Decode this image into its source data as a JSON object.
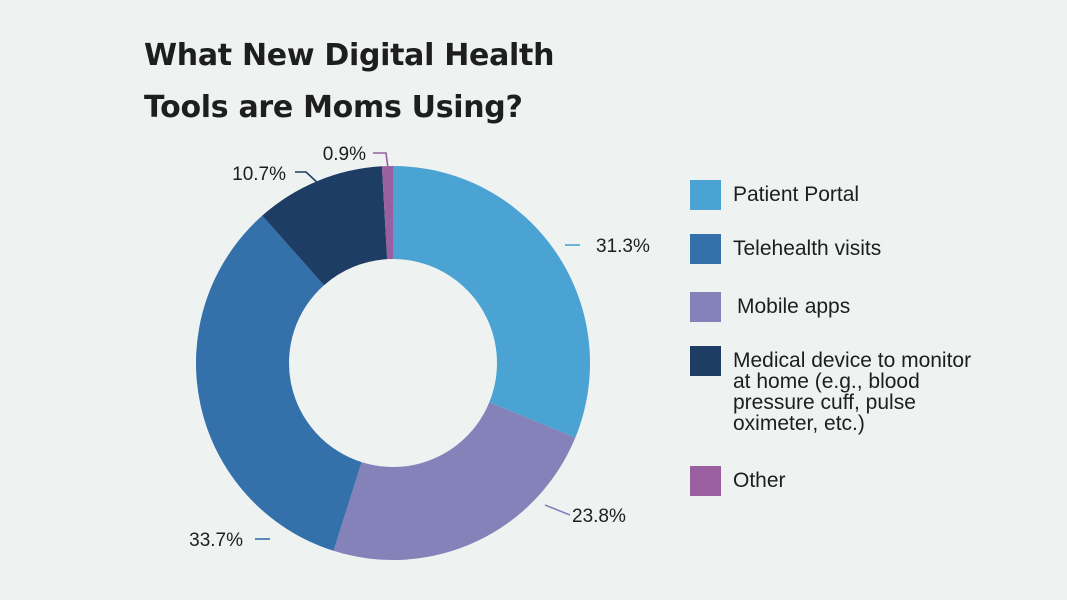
{
  "chart_data": {
    "type": "pie",
    "variant": "donut",
    "title_lines": [
      "What New Digital Health",
      "Tools are Moms Using?"
    ],
    "slices": [
      {
        "name": "Patient Portal",
        "value": 31.3,
        "label": "31.3%",
        "color": "#4aa3d3"
      },
      {
        "name": "Mobile apps",
        "value": 23.8,
        "label": "23.8%",
        "color": "#8582b9"
      },
      {
        "name": "Telehealth visits",
        "value": 33.7,
        "label": "33.7%",
        "color": "#3470aa"
      },
      {
        "name": "Medical device to monitor at home (e.g., blood pressure cuff, pulse oximeter, etc.)",
        "value": 10.7,
        "label": "10.7%",
        "color": "#1e3d64"
      },
      {
        "name": "Other",
        "value": 0.9,
        "label": "0.9%",
        "color": "#995f9e"
      }
    ],
    "legend": [
      {
        "label": "Patient Portal",
        "color": "#4aa3d3"
      },
      {
        "label": "Telehealth visits",
        "color": "#3470aa"
      },
      {
        "label": "Mobile apps",
        "color": "#8582b9"
      },
      {
        "label": "Medical device to monitor at home (e.g., blood pressure cuff, pulse oximeter, etc.)",
        "color": "#1e3d64"
      },
      {
        "label": "Other",
        "color": "#995f9e"
      }
    ],
    "legend_position": "right"
  }
}
